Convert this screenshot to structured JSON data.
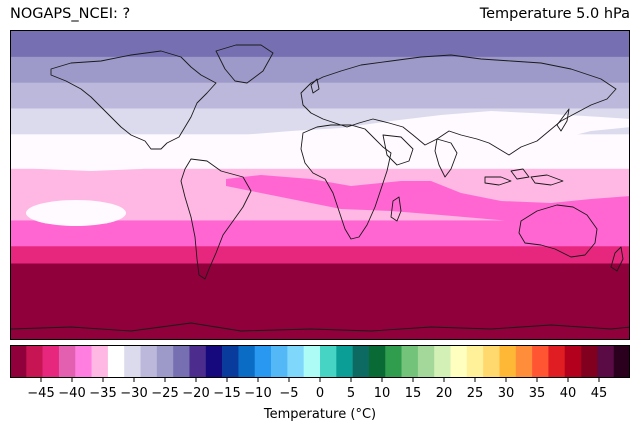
{
  "header": {
    "left_title": "NOGAPS_NCEI: ?",
    "right_title": "Temperature 5.0 hPa"
  },
  "map": {
    "projection": "PlateCarree",
    "coastlines": true,
    "field": "temperature",
    "bands_by_latitude": [
      {
        "lat_range": [
          90,
          75
        ],
        "temp_c": -20,
        "color": "#7670b2"
      },
      {
        "lat_range": [
          75,
          60
        ],
        "temp_c": -25,
        "color": "#9d99c9"
      },
      {
        "lat_range": [
          60,
          45
        ],
        "temp_c": -30,
        "color": "#bbb8db"
      },
      {
        "lat_range": [
          45,
          30
        ],
        "temp_c": -30,
        "color": "#dcdbee"
      },
      {
        "lat_range": [
          30,
          10
        ],
        "temp_c": -35,
        "color": "#fffaff"
      },
      {
        "lat_range": [
          10,
          -20
        ],
        "temp_c": -35,
        "color": "#ffb8e3"
      },
      {
        "lat_range": [
          -20,
          -35
        ],
        "temp_c": -40,
        "color": "#ff66d2"
      },
      {
        "lat_range": [
          -35,
          -45
        ],
        "temp_c": -45,
        "color": "#e7277e"
      },
      {
        "lat_range": [
          -45,
          -90
        ],
        "temp_c": -50,
        "color": "#90003a"
      }
    ]
  },
  "colorbar": {
    "label": "Temperature (°C)",
    "min": -50,
    "max": 50,
    "ticks": [
      "−45",
      "−40",
      "−35",
      "−30",
      "−25",
      "−20",
      "−15",
      "−10",
      "−5",
      "0",
      "5",
      "10",
      "15",
      "20",
      "25",
      "30",
      "35",
      "40",
      "45"
    ],
    "colors": [
      "#90003a",
      "#c71452",
      "#e7277e",
      "#e35faf",
      "#ff7ee0",
      "#ffb8e3",
      "#ffffff",
      "#dcdbee",
      "#bbb8db",
      "#9d99c9",
      "#7670b2",
      "#4c2d8e",
      "#16087d",
      "#083b9b",
      "#0a6cc4",
      "#2898f0",
      "#53b8f5",
      "#7fd8fb",
      "#aefcf6",
      "#46d4c4",
      "#0b9e96",
      "#0d6a63",
      "#0a6a35",
      "#2f9d4d",
      "#73c37a",
      "#a3d89a",
      "#d3f1b7",
      "#ffffbf",
      "#fff09a",
      "#ffd86e",
      "#ffb835",
      "#ff8d39",
      "#ff5533",
      "#e01d22",
      "#b3001c",
      "#82001f",
      "#5a0a45",
      "#2a001e"
    ]
  }
}
